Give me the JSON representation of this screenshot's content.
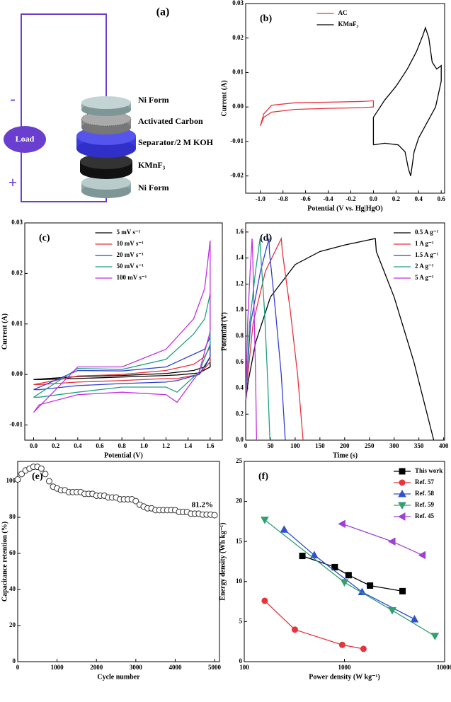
{
  "schematic": {
    "label": "(a)",
    "minus": "-",
    "plus": "+",
    "load": "Load",
    "layers": [
      "Ni Form",
      "Activated Carbon",
      "Separator/2 M KOH",
      "KMnF₃",
      "Ni Form"
    ]
  },
  "chart_data": [
    {
      "type": "line",
      "label": "(b)",
      "xlabel": "Potential (V vs. Hg|HgO)",
      "ylabel": "Current (A)",
      "xlim": [
        -1.13,
        0.63
      ],
      "ylim": [
        -0.025,
        0.03
      ],
      "xticks": [
        {
          "value": -1.0,
          "label": "-1.0"
        },
        -0.8,
        -0.6,
        -0.4,
        -0.2,
        {
          "value": 0,
          "label": "0.0"
        },
        0.2,
        0.4,
        0.6
      ],
      "yticks": [
        -0.02,
        -0.01,
        {
          "value": 0,
          "label": "0.00"
        },
        0.01,
        0.02,
        0.03
      ],
      "legend": "upper center",
      "series": [
        {
          "name": "AC",
          "color": "#e8323c",
          "x": [
            -1.0,
            -0.97,
            -0.9,
            -0.7,
            -0.4,
            -0.1,
            0.0,
            0.0,
            -0.1,
            -0.4,
            -0.7,
            -0.9,
            -0.97,
            -1.0
          ],
          "values": [
            -0.0055,
            -0.002,
            0.0005,
            0.0012,
            0.0014,
            0.0016,
            0.0018,
            0.0,
            -0.0002,
            -0.0004,
            -0.0007,
            -0.0015,
            -0.003,
            -0.0055
          ]
        },
        {
          "name": "KMnF₃",
          "color": "#000000",
          "x": [
            0.0,
            0.0,
            0.1,
            0.2,
            0.3,
            0.38,
            0.44,
            0.46,
            0.49,
            0.52,
            0.56,
            0.6,
            0.6,
            0.55,
            0.5,
            0.45,
            0.4,
            0.36,
            0.33,
            0.31,
            0.28,
            0.22,
            0.1,
            0.0
          ],
          "values": [
            -0.011,
            -0.003,
            0.002,
            0.006,
            0.011,
            0.016,
            0.021,
            0.023,
            0.02,
            0.013,
            0.011,
            0.012,
            0.0075,
            0.0,
            -0.003,
            -0.006,
            -0.009,
            -0.013,
            -0.02,
            -0.018,
            -0.013,
            -0.011,
            -0.0105,
            -0.011
          ]
        }
      ]
    },
    {
      "type": "line",
      "label": "(c)",
      "xlabel": "Potential (V)",
      "ylabel": "Current (A)",
      "xlim": [
        -0.08,
        1.71
      ],
      "ylim": [
        -0.013,
        0.03
      ],
      "xticks": [
        {
          "value": 0,
          "label": "0.0"
        },
        0.2,
        0.4,
        0.6,
        0.8,
        {
          "value": 1,
          "label": "1.0"
        },
        1.2,
        1.4,
        1.6
      ],
      "yticks": [
        -0.01,
        {
          "value": 0,
          "label": "0.00"
        },
        0.01,
        0.02,
        0.03
      ],
      "legend": "upper center",
      "x": [
        0,
        0.4,
        0.8,
        1.2,
        1.45,
        1.55,
        1.6,
        1.6,
        1.5,
        1.3,
        1.2,
        0.8,
        0.4,
        0.05,
        0
      ],
      "series": [
        {
          "name": "5 mV s⁻¹",
          "color": "#000000",
          "values": [
            -0.001,
            -0.0004,
            -0.0002,
            0.0002,
            0.0008,
            0.0015,
            0.0035,
            0.0015,
            0.0003,
            -0.0001,
            -0.0002,
            -0.0005,
            -0.0008,
            -0.001,
            -0.001
          ]
        },
        {
          "name": "10 mV s⁻¹",
          "color": "#e8323c",
          "values": [
            -0.002,
            -0.0003,
            0.0,
            0.0008,
            0.002,
            0.0035,
            0.0055,
            0.0025,
            0.0,
            -0.0008,
            -0.0008,
            -0.0012,
            -0.0015,
            -0.002,
            -0.002
          ]
        },
        {
          "name": "20 mV s⁻¹",
          "color": "#3040d0",
          "values": [
            -0.003,
            0.0008,
            0.0007,
            0.0015,
            0.004,
            0.005,
            0.0075,
            0.0035,
            0.0,
            -0.0012,
            -0.0015,
            -0.0018,
            -0.0022,
            -0.003,
            -0.003
          ]
        },
        {
          "name": "50 mV s⁻¹",
          "color": "#20a080",
          "values": [
            -0.0045,
            0.0012,
            0.001,
            0.003,
            0.008,
            0.011,
            0.016,
            0.006,
            0.0005,
            -0.0035,
            -0.0025,
            -0.0025,
            -0.0035,
            -0.0045,
            -0.0045
          ]
        },
        {
          "name": "100 mV s⁻¹",
          "color": "#c030e0",
          "values": [
            -0.0075,
            0.0015,
            0.0015,
            0.005,
            0.011,
            0.017,
            0.0265,
            0.0085,
            0.0005,
            -0.0055,
            -0.004,
            -0.0035,
            -0.004,
            -0.006,
            -0.0075
          ]
        }
      ]
    },
    {
      "type": "line",
      "label": "(d)",
      "xlabel": "Time (s)",
      "ylabel": "Potential (V)",
      "xlim": [
        0,
        402
      ],
      "ylim": [
        0,
        1.67
      ],
      "xticks": [
        0,
        50,
        100,
        150,
        200,
        250,
        300,
        350,
        400
      ],
      "yticks": [
        {
          "value": 0,
          "label": "0.0"
        },
        0.2,
        0.4,
        0.6,
        0.8,
        {
          "value": 1,
          "label": "1.0"
        },
        1.2,
        1.4,
        1.6
      ],
      "legend": "upper right",
      "series": [
        {
          "name": "0.5 A g⁻¹",
          "color": "#000000",
          "x": [
            0,
            5,
            20,
            50,
            100,
            150,
            200,
            262,
            264,
            300,
            340,
            380
          ],
          "values": [
            0.3,
            0.45,
            0.75,
            1.1,
            1.35,
            1.45,
            1.5,
            1.55,
            1.45,
            1.1,
            0.6,
            0.0
          ]
        },
        {
          "name": "1 A g⁻¹",
          "color": "#e8323c",
          "x": [
            0,
            3,
            15,
            40,
            72,
            74,
            90,
            105,
            116
          ],
          "values": [
            0.3,
            0.45,
            0.9,
            1.3,
            1.55,
            1.45,
            1.0,
            0.5,
            0.0
          ]
        },
        {
          "name": "1.5 A g⁻¹",
          "color": "#3040d0",
          "x": [
            0,
            2,
            10,
            30,
            47,
            48,
            60,
            72,
            80
          ],
          "values": [
            0.3,
            0.45,
            0.9,
            1.3,
            1.55,
            1.45,
            1.0,
            0.5,
            0.0
          ]
        },
        {
          "name": "2 A g⁻¹",
          "color": "#20a080",
          "x": [
            0,
            2,
            8,
            20,
            29,
            30,
            38,
            44,
            49
          ],
          "values": [
            0.3,
            0.45,
            0.9,
            1.3,
            1.55,
            1.45,
            1.0,
            0.5,
            0.0
          ]
        },
        {
          "name": "5 A g⁻¹",
          "color": "#c030e0",
          "x": [
            0,
            1,
            4,
            9,
            13,
            14,
            17,
            20,
            22
          ],
          "values": [
            0.3,
            0.45,
            0.9,
            1.3,
            1.55,
            1.45,
            1.0,
            0.5,
            0.0
          ]
        }
      ]
    },
    {
      "type": "scatter",
      "label": "(e)",
      "xlabel": "Cycle number",
      "ylabel": "Capacitance retention (%)",
      "xlim": [
        0,
        5125
      ],
      "ylim": [
        0,
        111
      ],
      "xticks": [
        0,
        1000,
        2000,
        3000,
        4000,
        5000
      ],
      "yticks": [
        0,
        20,
        40,
        60,
        80,
        100
      ],
      "annotation": "81.2%",
      "color": "#333333",
      "x": [
        0,
        100,
        200,
        300,
        400,
        500,
        600,
        700,
        800,
        900,
        1000,
        1100,
        1200,
        1300,
        1400,
        1500,
        1600,
        1700,
        1800,
        1900,
        2000,
        2100,
        2200,
        2300,
        2400,
        2500,
        2600,
        2700,
        2800,
        2900,
        3000,
        3100,
        3200,
        3300,
        3400,
        3500,
        3600,
        3700,
        3800,
        3900,
        4000,
        4100,
        4200,
        4300,
        4400,
        4500,
        4600,
        4700,
        4800,
        4900,
        5000
      ],
      "values": [
        101,
        104,
        106,
        107,
        108,
        108,
        107,
        104,
        100,
        97,
        96,
        95,
        95,
        94,
        94,
        94,
        94,
        93,
        93,
        93,
        92,
        92,
        92,
        91,
        91,
        91,
        90,
        90,
        90,
        90,
        89,
        87,
        86,
        85,
        85,
        84,
        84,
        84,
        84,
        84,
        84,
        83,
        83,
        83,
        82,
        82,
        82,
        81.5,
        81.5,
        81.5,
        81.2
      ]
    },
    {
      "type": "line",
      "label": "(f)",
      "xlabel": "Power density (W kg⁻¹)",
      "ylabel": "Energy density (Wh kg⁻¹)",
      "xscale": "log",
      "xlim": [
        100,
        10000
      ],
      "ylim": [
        0,
        25
      ],
      "xticks": [
        100,
        1000,
        10000
      ],
      "yticks": [
        0,
        5,
        10,
        15,
        20,
        25
      ],
      "legend": "upper right",
      "series": [
        {
          "name": "This work",
          "color": "#000000",
          "marker": "square",
          "x": [
            380,
            800,
            1100,
            1800,
            3800
          ],
          "values": [
            13.2,
            11.8,
            10.8,
            9.5,
            8.8
          ]
        },
        {
          "name": "Ref. 57",
          "color": "#e8323c",
          "marker": "circle",
          "x": [
            160,
            320,
            950,
            1550
          ],
          "values": [
            7.6,
            4.0,
            2.1,
            1.6
          ]
        },
        {
          "name": "Ref. 58",
          "color": "#3050d0",
          "marker": "triangle-up",
          "x": [
            250,
            500,
            1500,
            5000
          ],
          "values": [
            16.5,
            13.3,
            8.7,
            5.3
          ]
        },
        {
          "name": "Ref. 59",
          "color": "#30a070",
          "marker": "triangle-down",
          "x": [
            160,
            1000,
            3000,
            8000
          ],
          "values": [
            17.7,
            9.9,
            6.4,
            3.2
          ]
        },
        {
          "name": "Ref. 45",
          "color": "#a040d0",
          "marker": "triangle-left",
          "x": [
            950,
            3000,
            6000
          ],
          "values": [
            17.2,
            15.0,
            13.3
          ]
        }
      ]
    }
  ]
}
